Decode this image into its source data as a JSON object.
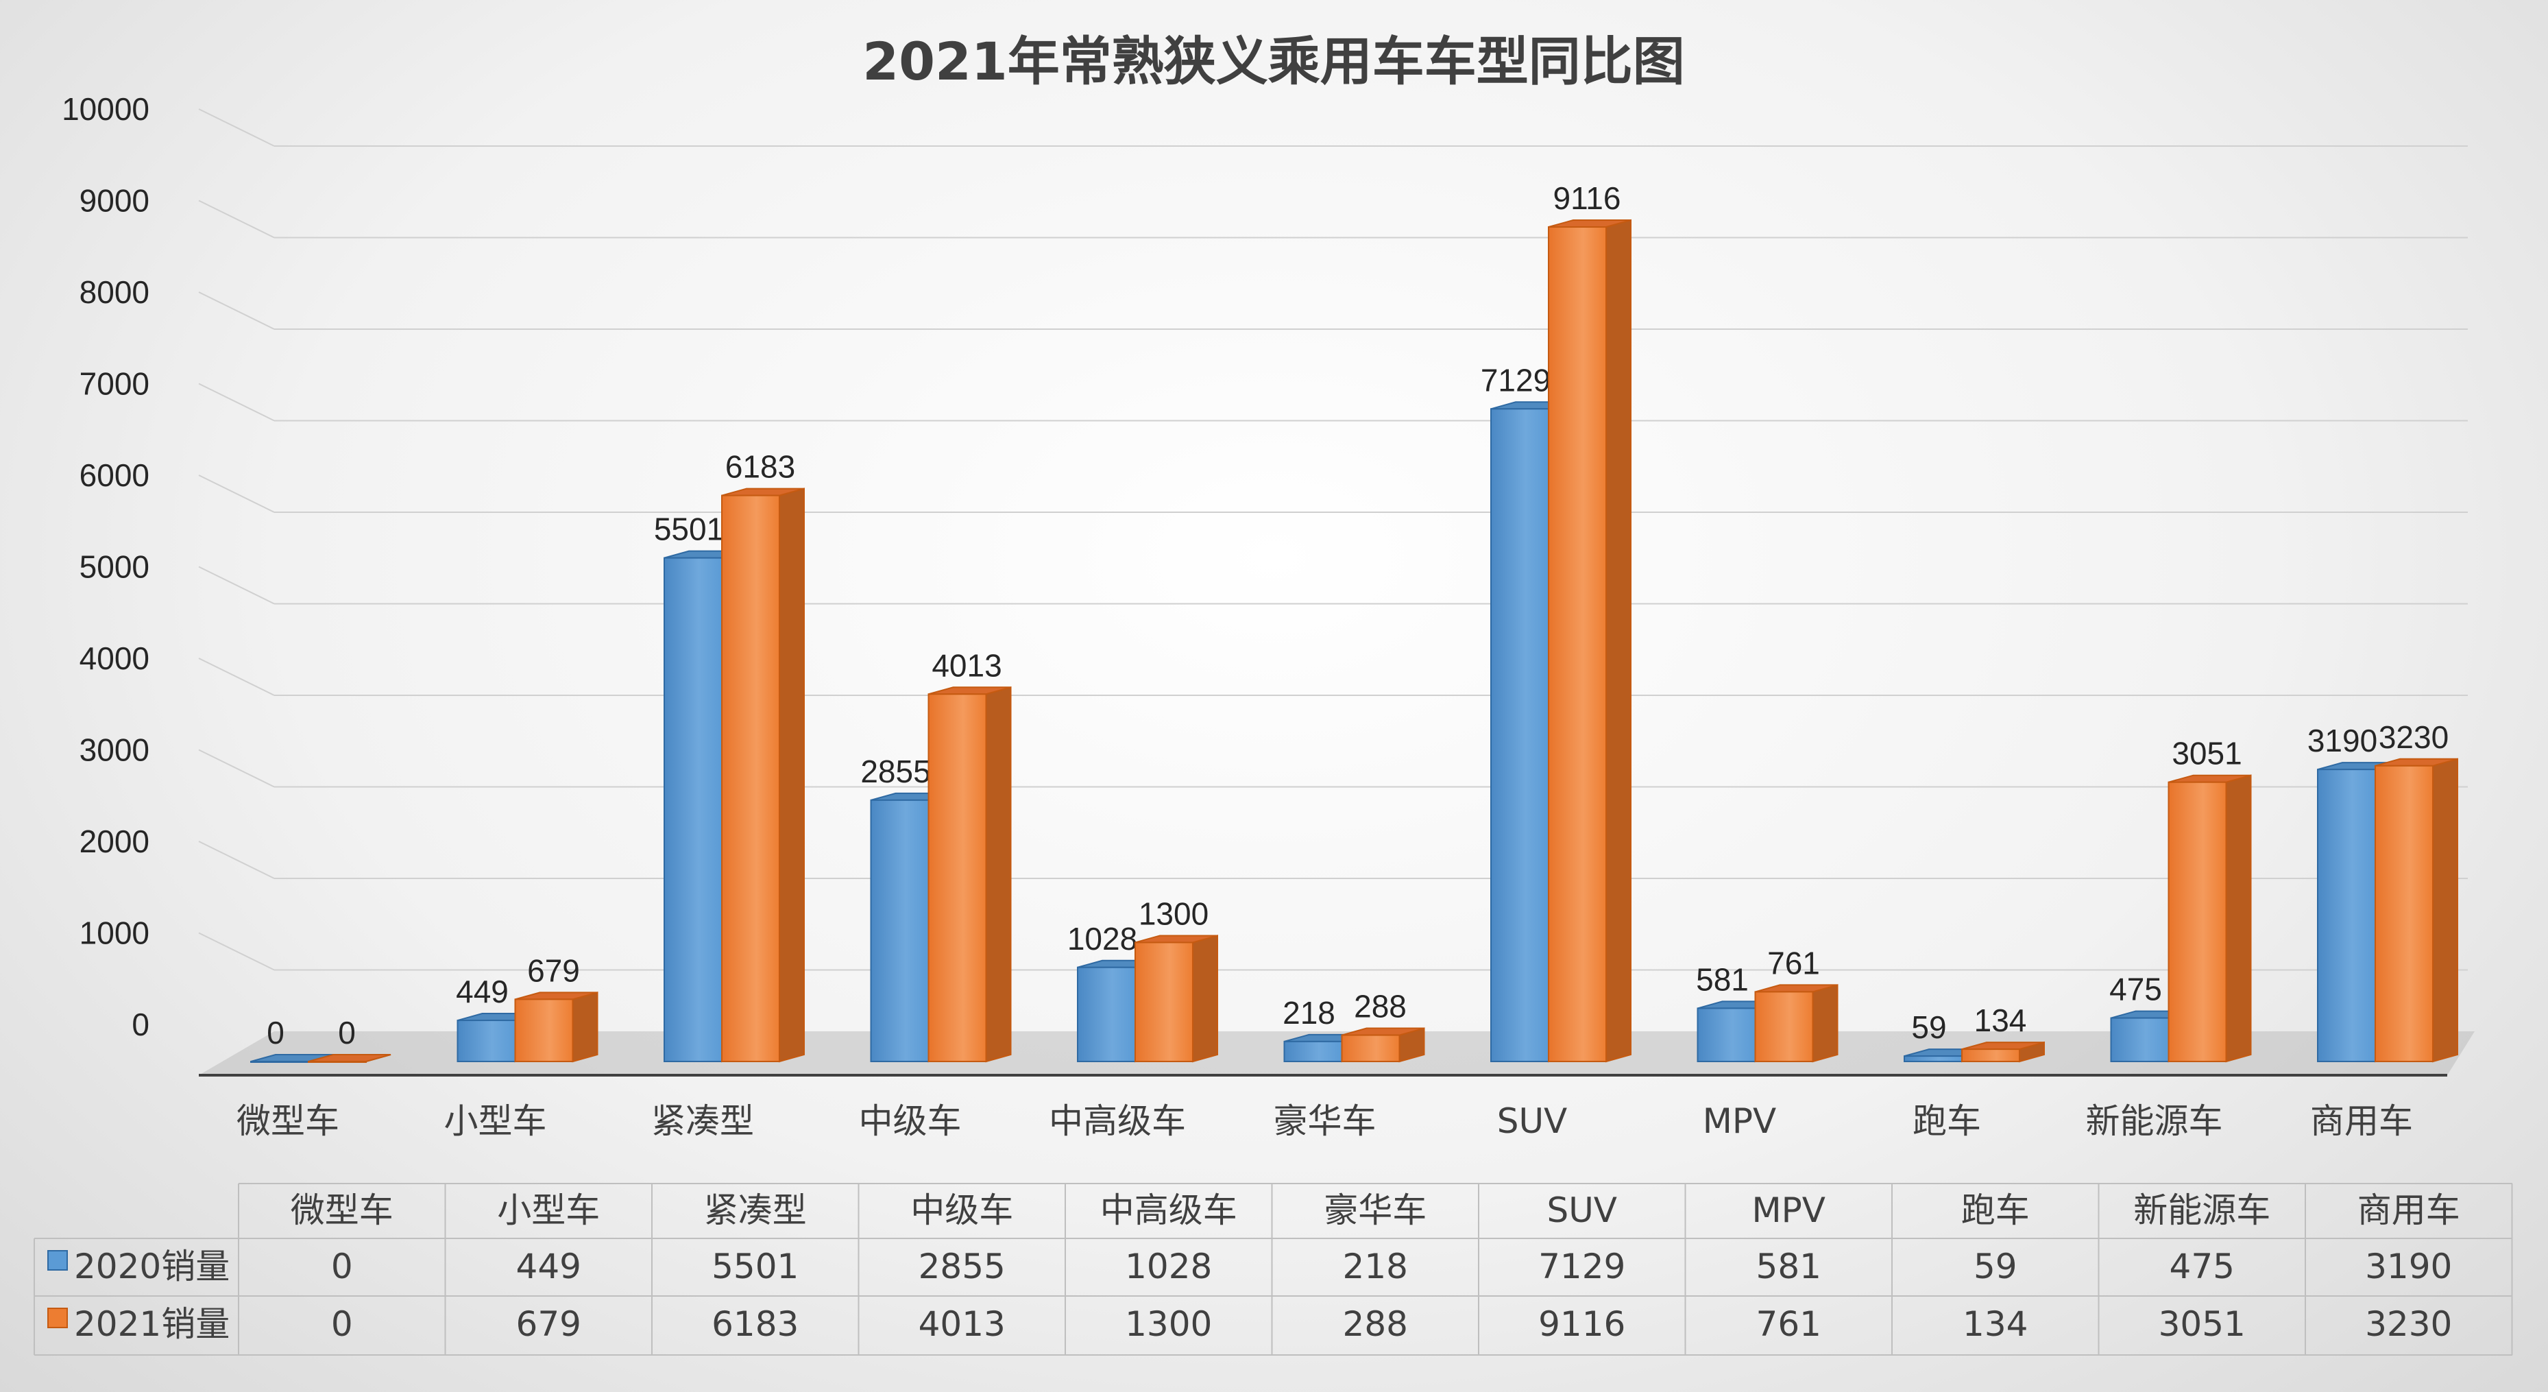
{
  "chart_data": {
    "type": "bar",
    "title": "2021年常熟狭义乘用车车型同比图",
    "categories": [
      "微型车",
      "小型车",
      "紧凑型",
      "中级车",
      "中高级车",
      "豪华车",
      "SUV",
      "MPV",
      "跑车",
      "新能源车",
      "商用车"
    ],
    "series": [
      {
        "name": "2020销量",
        "values": [
          0,
          449,
          5501,
          2855,
          1028,
          218,
          7129,
          581,
          59,
          475,
          3190
        ],
        "color": "#5b9bd5"
      },
      {
        "name": "2021销量",
        "values": [
          0,
          679,
          6183,
          4013,
          1300,
          288,
          9116,
          761,
          134,
          3051,
          3230
        ],
        "color": "#ed7d31"
      }
    ],
    "ylim": [
      0,
      10000
    ],
    "yticks": [
      "0",
      "1000",
      "2000",
      "3000",
      "4000",
      "5000",
      "6000",
      "7000",
      "8000",
      "9000",
      "10000"
    ],
    "grid": true,
    "legend": "data-table"
  }
}
